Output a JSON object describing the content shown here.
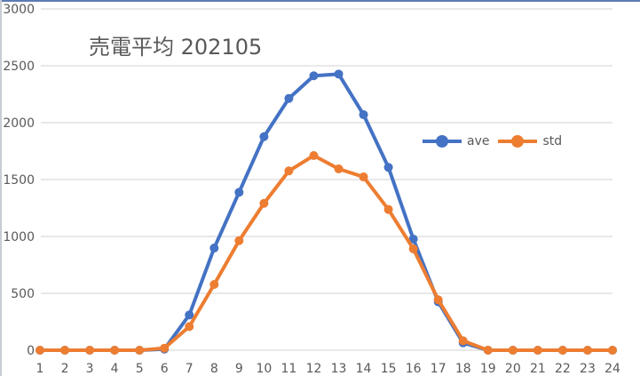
{
  "chart_data": {
    "type": "line",
    "title": "売電平均 202105",
    "xlabel": "",
    "ylabel": "",
    "categories": [
      "1",
      "2",
      "3",
      "4",
      "5",
      "6",
      "7",
      "8",
      "9",
      "10",
      "11",
      "12",
      "13",
      "14",
      "15",
      "16",
      "17",
      "18",
      "19",
      "20",
      "21",
      "22",
      "23",
      "24"
    ],
    "series": [
      {
        "name": "ave",
        "color": "#4472c4",
        "values": [
          0,
          0,
          0,
          0,
          0,
          10,
          310,
          898,
          1388,
          1877,
          2213,
          2412,
          2427,
          2070,
          1607,
          977,
          425,
          65,
          0,
          0,
          0,
          0,
          0,
          0
        ]
      },
      {
        "name": "std",
        "color": "#ed7d31",
        "values": [
          0,
          0,
          0,
          0,
          0,
          18,
          208,
          578,
          963,
          1291,
          1576,
          1711,
          1594,
          1523,
          1237,
          891,
          443,
          83,
          0,
          0,
          0,
          0,
          0,
          0
        ]
      }
    ],
    "ylim": [
      0,
      3000
    ],
    "yticks": [
      0,
      500,
      1000,
      1500,
      2000,
      2500,
      3000
    ],
    "grid": true,
    "legend_position": "inside-right"
  },
  "colors": {
    "grid": "#d9d9d9",
    "axis_text": "#595959",
    "frame_top": "#5b7bb5"
  }
}
